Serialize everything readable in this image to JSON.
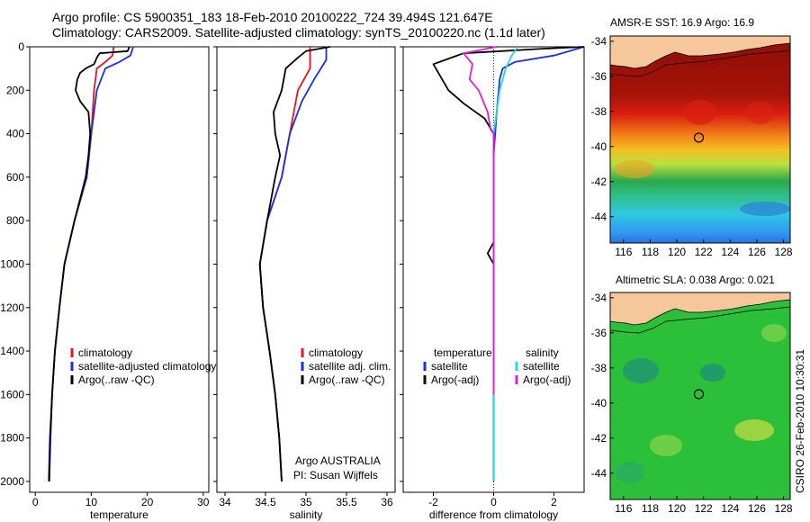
{
  "header": {
    "line1": "Argo profile: CS 5900351_183 18-Feb-2010 20100222_724 39.494S 121.647E",
    "line2": "Climatology: CARS2009. Satellite-adjusted climatology: synTS_20100220.nc (1.1d later)"
  },
  "colors": {
    "climatology": "#e8141e",
    "satellite": "#1a2ee6",
    "argo": "#000000",
    "salinity_satellite": "#21d8dc",
    "salinity_argo": "#e01ee0",
    "land": "#f5c79b"
  },
  "chart_data": [
    {
      "type": "line",
      "xlabel": "temperature",
      "ylabel": "",
      "xlim": [
        -1,
        31
      ],
      "ylim": [
        2050,
        0
      ],
      "x_ticks": [
        0,
        10,
        20,
        30
      ],
      "y_ticks": [
        0,
        200,
        400,
        600,
        800,
        1000,
        1200,
        1400,
        1600,
        1800,
        2000
      ],
      "legend_position": "lower-right",
      "series": [
        {
          "name": "climatology",
          "color": "red",
          "points": [
            [
              14,
              0
            ],
            [
              13.8,
              40
            ],
            [
              12.5,
              70
            ],
            [
              11,
              100
            ],
            [
              10.5,
              200
            ],
            [
              10,
              400
            ],
            [
              9.2,
              600
            ],
            [
              7,
              800
            ],
            [
              5.2,
              1000
            ],
            [
              4.3,
              1200
            ],
            [
              3.5,
              1400
            ],
            [
              3.0,
              1600
            ],
            [
              2.7,
              1800
            ],
            [
              2.5,
              1880
            ]
          ]
        },
        {
          "name": "satellite-adjusted climatology",
          "color": "blue",
          "points": [
            [
              17.5,
              0
            ],
            [
              17,
              40
            ],
            [
              15,
              70
            ],
            [
              12.5,
              100
            ],
            [
              11,
              200
            ],
            [
              10,
              400
            ],
            [
              9.2,
              600
            ],
            [
              7,
              800
            ],
            [
              5.2,
              1000
            ],
            [
              4.3,
              1200
            ],
            [
              3.5,
              1400
            ],
            [
              3.0,
              1600
            ],
            [
              2.6,
              1800
            ],
            [
              2.4,
              2000
            ]
          ]
        },
        {
          "name": "Argo(..raw -QC)",
          "color": "black",
          "points": [
            [
              16.8,
              0
            ],
            [
              16.5,
              20
            ],
            [
              11.5,
              30
            ],
            [
              11,
              50
            ],
            [
              10.5,
              80
            ],
            [
              9,
              100
            ],
            [
              8,
              120
            ],
            [
              7.5,
              150
            ],
            [
              7.2,
              200
            ],
            [
              8,
              250
            ],
            [
              9.5,
              300
            ],
            [
              9.8,
              400
            ],
            [
              9.5,
              500
            ],
            [
              9,
              600
            ],
            [
              7,
              800
            ],
            [
              5.2,
              1000
            ],
            [
              4.3,
              1200
            ],
            [
              3.5,
              1400
            ],
            [
              3.0,
              1600
            ],
            [
              2.7,
              1800
            ],
            [
              2.5,
              2000
            ]
          ]
        }
      ]
    },
    {
      "type": "line",
      "xlabel": "salinity",
      "ylabel": "",
      "xlim": [
        33.9,
        36.1
      ],
      "ylim": [
        2050,
        0
      ],
      "x_ticks": [
        34,
        34.5,
        35,
        35.5,
        36
      ],
      "legend_position": "lower-right",
      "series": [
        {
          "name": "climatology",
          "color": "red",
          "points": [
            [
              35.05,
              0
            ],
            [
              35.05,
              100
            ],
            [
              34.9,
              200
            ],
            [
              34.8,
              400
            ],
            [
              34.7,
              600
            ],
            [
              34.52,
              800
            ],
            [
              34.43,
              1000
            ],
            [
              34.47,
              1200
            ],
            [
              34.55,
              1400
            ],
            [
              34.62,
              1600
            ],
            [
              34.67,
              1800
            ],
            [
              34.7,
              2000
            ]
          ]
        },
        {
          "name": "satellite adj. clim.",
          "color": "blue",
          "points": [
            [
              35.25,
              0
            ],
            [
              35.25,
              60
            ],
            [
              35.1,
              150
            ],
            [
              34.95,
              250
            ],
            [
              34.8,
              400
            ],
            [
              34.7,
              600
            ],
            [
              34.52,
              800
            ],
            [
              34.43,
              1000
            ],
            [
              34.47,
              1200
            ],
            [
              34.55,
              1400
            ],
            [
              34.62,
              1600
            ],
            [
              34.67,
              1800
            ],
            [
              34.7,
              2000
            ]
          ]
        },
        {
          "name": "Argo(..raw -QC)",
          "color": "black",
          "points": [
            [
              35.3,
              0
            ],
            [
              35.0,
              20
            ],
            [
              34.9,
              50
            ],
            [
              34.75,
              100
            ],
            [
              34.7,
              200
            ],
            [
              34.6,
              300
            ],
            [
              34.62,
              400
            ],
            [
              34.68,
              500
            ],
            [
              34.62,
              600
            ],
            [
              34.52,
              800
            ],
            [
              34.43,
              1000
            ],
            [
              34.47,
              1200
            ],
            [
              34.55,
              1400
            ],
            [
              34.62,
              1600
            ],
            [
              34.67,
              1800
            ],
            [
              34.7,
              2000
            ]
          ]
        }
      ]
    },
    {
      "type": "line",
      "xlabel": "difference from climatology",
      "ylabel": "",
      "xlim": [
        -3,
        3
      ],
      "ylim": [
        2050,
        0
      ],
      "x_ticks": [
        -2,
        0,
        2
      ],
      "legend_position": "lower-right",
      "legend_headers": [
        "temperature",
        "salinity"
      ],
      "series": [
        {
          "name": "satellite",
          "group": "temperature",
          "color": "blue",
          "points": [
            [
              3,
              0
            ],
            [
              2,
              40
            ],
            [
              0.7,
              70
            ],
            [
              0.3,
              100
            ],
            [
              0.2,
              150
            ],
            [
              0.1,
              300
            ],
            [
              0,
              500
            ],
            [
              0,
              2000
            ]
          ]
        },
        {
          "name": "Argo(-adj)",
          "group": "temperature",
          "color": "black",
          "points": [
            [
              3,
              0
            ],
            [
              1.5,
              10
            ],
            [
              -1,
              30
            ],
            [
              -2,
              80
            ],
            [
              -1.5,
              200
            ],
            [
              -1,
              260
            ],
            [
              -0.3,
              330
            ],
            [
              0,
              400
            ],
            [
              0,
              900
            ],
            [
              -0.2,
              950
            ],
            [
              0,
              1000
            ],
            [
              0,
              2000
            ]
          ]
        },
        {
          "name": "satellite",
          "group": "salinity",
          "color": "cyan",
          "points": [
            [
              0.8,
              0
            ],
            [
              0.6,
              40
            ],
            [
              0.4,
              100
            ],
            [
              0.2,
              200
            ],
            [
              0.1,
              300
            ],
            [
              0,
              400
            ],
            [
              0,
              2000
            ]
          ]
        },
        {
          "name": "Argo(-adj)",
          "group": "salinity",
          "color": "magenta",
          "points": [
            [
              0.1,
              0
            ],
            [
              -1,
              30
            ],
            [
              -0.7,
              80
            ],
            [
              -0.8,
              150
            ],
            [
              -0.5,
              200
            ],
            [
              -0.2,
              300
            ],
            [
              -0.1,
              380
            ],
            [
              0,
              400
            ],
            [
              0,
              1600
            ]
          ]
        }
      ]
    },
    {
      "type": "heatmap",
      "title": "AMSR-E SST: 16.9 Argo: 16.9",
      "xlim": [
        115,
        128.5
      ],
      "ylim": [
        -45.5,
        -33.7
      ],
      "x_ticks": [
        116,
        118,
        120,
        122,
        124,
        126,
        128
      ],
      "y_ticks": [
        -34,
        -36,
        -38,
        -40,
        -42,
        -44
      ],
      "marker": [
        121.647,
        -39.494
      ]
    },
    {
      "type": "heatmap",
      "title": "Altimetric SLA: 0.038 Argo: 0.021",
      "xlim": [
        115,
        128.5
      ],
      "ylim": [
        -45.5,
        -33.7
      ],
      "x_ticks": [
        116,
        118,
        120,
        122,
        124,
        126,
        128
      ],
      "y_ticks": [
        -34,
        -36,
        -38,
        -40,
        -42,
        -44
      ],
      "marker": [
        121.647,
        -39.494
      ]
    }
  ],
  "annotations": {
    "stamp": "CSIRO 26-Feb-2010 10:30:31",
    "credit_line1": "Argo AUSTRALIA",
    "credit_line2": "PI: Susan Wijffels"
  }
}
